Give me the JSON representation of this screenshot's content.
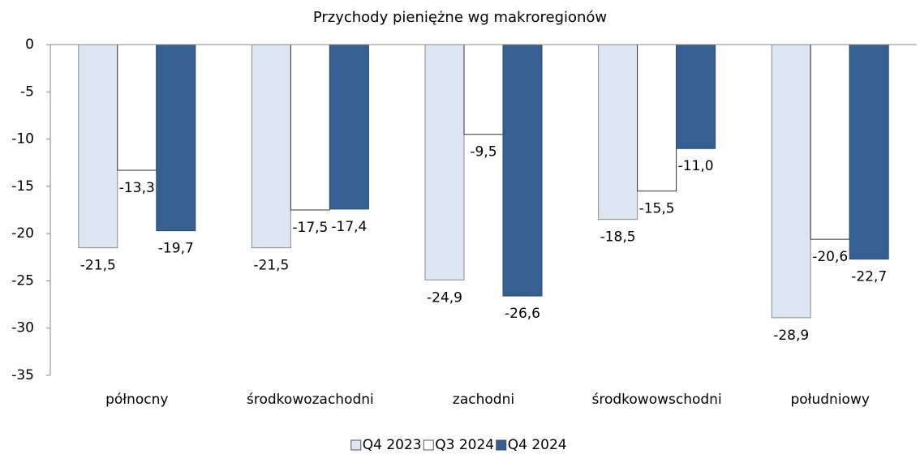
{
  "chart_data": {
    "type": "bar",
    "title": "Przychody pieniężne wg makroregionów",
    "categories": [
      "północny",
      "środkowozachodni",
      "zachodni",
      "środkowowschodni",
      "południowy"
    ],
    "series": [
      {
        "name": "Q4 2023",
        "color": "#dce6f2",
        "values": [
          -21.5,
          -21.5,
          -24.9,
          -18.5,
          -28.9
        ],
        "value_labels": [
          "-21,5",
          "-21,5",
          "-24,9",
          "-18,5",
          "-28,9"
        ]
      },
      {
        "name": "Q3 2024",
        "color": "#ffffff",
        "values": [
          -13.3,
          -17.5,
          -9.5,
          -15.5,
          -20.6
        ],
        "value_labels": [
          "-13,3",
          "-17,5",
          "-9,5",
          "-15,5",
          "-20,6"
        ]
      },
      {
        "name": "Q4 2024",
        "color": "#376092",
        "values": [
          -19.7,
          -17.4,
          -26.6,
          -11.0,
          -22.7
        ],
        "value_labels": [
          "-19,7",
          "-17,4",
          "-26,6",
          "-11,0",
          "-22,7"
        ]
      }
    ],
    "ylim": [
      -35,
      0
    ],
    "yticks": [
      0,
      -5,
      -10,
      -15,
      -20,
      -25,
      -30,
      -35
    ],
    "grid": false,
    "legend": "bottom"
  }
}
